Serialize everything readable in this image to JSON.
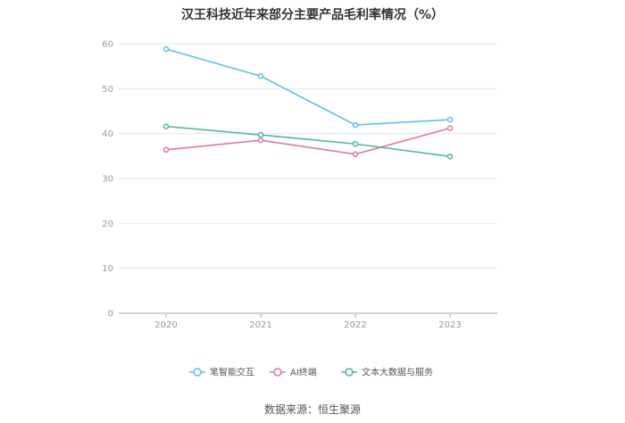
{
  "chart_data": {
    "type": "line",
    "title": "汉王科技近年来部分主要产品毛利率情况（%）",
    "source": "数据来源：恒生聚源",
    "categories": [
      "2020",
      "2021",
      "2022",
      "2023"
    ],
    "ylim": [
      0,
      60
    ],
    "yticks": [
      0,
      10,
      20,
      30,
      40,
      50,
      60
    ],
    "grid": true,
    "legend_position": "bottom",
    "series": [
      {
        "name": "笔智能交互",
        "color": "#5bc0eb",
        "values": [
          58.8,
          52.8,
          41.9,
          43.1
        ]
      },
      {
        "name": "AI终端",
        "color": "#e573a8",
        "values": [
          36.4,
          38.5,
          35.4,
          41.2
        ]
      },
      {
        "name": "文本大数据与服务",
        "color": "#4fb89a",
        "values": [
          41.6,
          39.7,
          37.7,
          34.9
        ]
      }
    ]
  }
}
